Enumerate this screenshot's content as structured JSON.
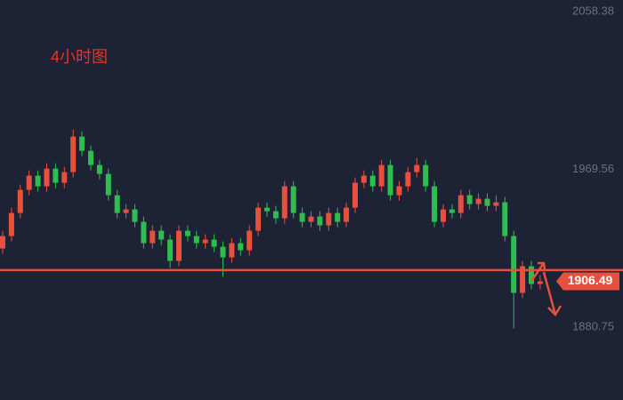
{
  "chart_data": {
    "type": "candlestick",
    "title": "4小时图",
    "open": [
      1925,
      1932,
      1945,
      1958,
      1966,
      1960,
      1970,
      1962,
      1968,
      1988,
      1980,
      1972,
      1967,
      1955,
      1945,
      1947,
      1940,
      1928,
      1935,
      1930,
      1918,
      1935,
      1932,
      1928,
      1930,
      1926,
      1920,
      1928,
      1924,
      1935,
      1948,
      1946,
      1942,
      1960,
      1945,
      1940,
      1943,
      1938,
      1945,
      1940,
      1948,
      1962,
      1966,
      1960,
      1972,
      1955,
      1960,
      1968,
      1972,
      1960,
      1940,
      1947,
      1945,
      1955,
      1950,
      1953,
      1949,
      1951,
      1932,
      1900,
      1915,
      1905
    ],
    "high": [
      1935,
      1948,
      1961,
      1969,
      1969,
      1973,
      1973,
      1971,
      1992,
      1991,
      1983,
      1975,
      1970,
      1958,
      1950,
      1950,
      1943,
      1938,
      1938,
      1933,
      1938,
      1938,
      1935,
      1933,
      1933,
      1929,
      1931,
      1931,
      1938,
      1951,
      1951,
      1949,
      1963,
      1963,
      1948,
      1946,
      1946,
      1948,
      1948,
      1951,
      1965,
      1969,
      1969,
      1975,
      1975,
      1963,
      1971,
      1976,
      1975,
      1963,
      1950,
      1950,
      1958,
      1958,
      1956,
      1956,
      1955,
      1954,
      1935,
      1918,
      1918,
      1910
    ],
    "low": [
      1922,
      1929,
      1942,
      1955,
      1957,
      1957,
      1959,
      1959,
      1965,
      1977,
      1969,
      1964,
      1952,
      1942,
      1942,
      1937,
      1925,
      1925,
      1927,
      1914,
      1915,
      1929,
      1925,
      1925,
      1923,
      1909,
      1917,
      1921,
      1921,
      1932,
      1943,
      1939,
      1939,
      1942,
      1937,
      1937,
      1935,
      1935,
      1937,
      1937,
      1945,
      1959,
      1957,
      1957,
      1952,
      1952,
      1957,
      1965,
      1957,
      1937,
      1937,
      1942,
      1942,
      1947,
      1947,
      1946,
      1946,
      1929,
      1880,
      1897,
      1902,
      1902
    ],
    "close": [
      1932,
      1945,
      1958,
      1966,
      1960,
      1970,
      1962,
      1968,
      1988,
      1980,
      1972,
      1967,
      1955,
      1945,
      1947,
      1940,
      1928,
      1935,
      1930,
      1918,
      1935,
      1932,
      1928,
      1930,
      1926,
      1920,
      1928,
      1924,
      1935,
      1948,
      1946,
      1942,
      1960,
      1945,
      1940,
      1943,
      1938,
      1945,
      1940,
      1948,
      1962,
      1966,
      1960,
      1972,
      1955,
      1960,
      1968,
      1972,
      1960,
      1940,
      1947,
      1945,
      1955,
      1950,
      1953,
      1949,
      1951,
      1932,
      1900,
      1915,
      1905,
      1906.49
    ],
    "up_color": "#e8503e",
    "down_color": "#2ebd4e",
    "price_line": 1912.8,
    "price_line_color": "#e8503e",
    "ylim": [
      1839.7,
      2064.9
    ],
    "yticks": [
      2058.38,
      1969.56,
      1880.75
    ]
  }
}
